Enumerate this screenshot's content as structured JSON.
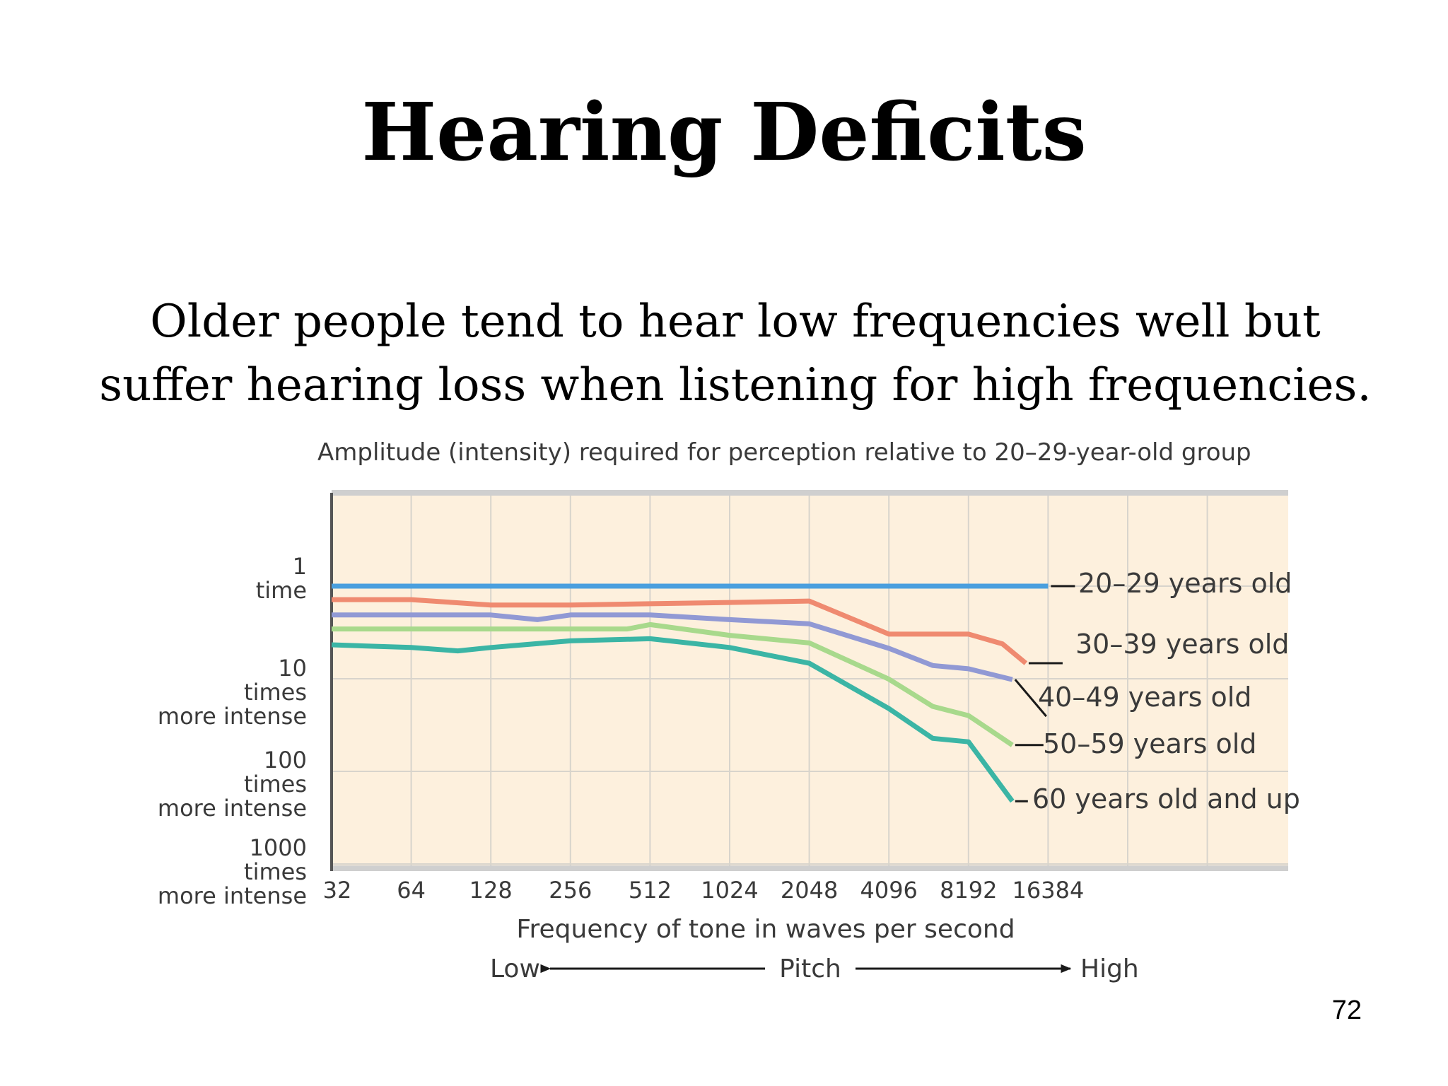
{
  "slide": {
    "title": "Hearing Deficits",
    "subtitle": "Older people tend to hear low frequencies well but suffer hearing loss when listening for high frequencies.",
    "page_number": "72"
  },
  "colors": {
    "plot_background": "#fdf0dd",
    "grid": "#d8d4cc",
    "plot_border": "#cfcfcf",
    "text": "#3a3a3a",
    "axis_line": "#1a1a1a"
  },
  "chart_data": {
    "type": "line",
    "title": "Amplitude (intensity) required for perception relative to 20–29-year-old group",
    "xlabel": "Frequency of tone in waves per second",
    "x_scale": "log2",
    "x": [
      32,
      64,
      128,
      256,
      512,
      1024,
      2048,
      4096,
      8192,
      16384
    ],
    "x_tick_labels": [
      "32",
      "64",
      "128",
      "256",
      "512",
      "1024",
      "2048",
      "4096",
      "8192",
      "16384"
    ],
    "y_scale": "log10",
    "y_ticks": [
      {
        "value": 1,
        "label": [
          "1",
          "time"
        ]
      },
      {
        "value": 10,
        "label": [
          "10",
          "times",
          "more intense"
        ]
      },
      {
        "value": 100,
        "label": [
          "100",
          "times",
          "more intense"
        ]
      },
      {
        "value": 1000,
        "label": [
          "1000",
          "times",
          "more intense"
        ]
      }
    ],
    "ylim": [
      0.25,
      1000
    ],
    "grid": true,
    "pitch_axis": {
      "low": "Low",
      "label": "Pitch",
      "high": "High"
    },
    "series": [
      {
        "name": "20–29 years old",
        "color": "#4a9fde",
        "points": [
          [
            32,
            1
          ],
          [
            64,
            1
          ],
          [
            128,
            1
          ],
          [
            256,
            1
          ],
          [
            512,
            1
          ],
          [
            1024,
            1
          ],
          [
            2048,
            1
          ],
          [
            4096,
            1
          ],
          [
            8192,
            1
          ],
          [
            16384,
            1
          ]
        ]
      },
      {
        "name": "30–39 years old",
        "color": "#ef8a70",
        "points": [
          [
            32,
            1.4
          ],
          [
            64,
            1.4
          ],
          [
            128,
            1.6
          ],
          [
            256,
            1.6
          ],
          [
            512,
            1.55
          ],
          [
            1024,
            1.5
          ],
          [
            2048,
            1.45
          ],
          [
            4096,
            3.3
          ],
          [
            8192,
            3.3
          ],
          [
            11000,
            4.2
          ],
          [
            13500,
            6.8
          ]
        ]
      },
      {
        "name": "40–49 years old",
        "color": "#9199d4",
        "points": [
          [
            32,
            2.05
          ],
          [
            64,
            2.05
          ],
          [
            128,
            2.05
          ],
          [
            192,
            2.3
          ],
          [
            256,
            2.05
          ],
          [
            512,
            2.05
          ],
          [
            1024,
            2.3
          ],
          [
            2048,
            2.55
          ],
          [
            4096,
            4.7
          ],
          [
            6000,
            7.2
          ],
          [
            8192,
            7.8
          ],
          [
            12000,
            10.2
          ]
        ]
      },
      {
        "name": "50–59 years old",
        "color": "#a8d98c",
        "points": [
          [
            32,
            2.9
          ],
          [
            64,
            2.9
          ],
          [
            128,
            2.9
          ],
          [
            256,
            2.9
          ],
          [
            420,
            2.9
          ],
          [
            512,
            2.6
          ],
          [
            1024,
            3.4
          ],
          [
            2048,
            4.1
          ],
          [
            4096,
            10.1
          ],
          [
            6000,
            19.9
          ],
          [
            8192,
            25
          ],
          [
            12000,
            52
          ]
        ]
      },
      {
        "name": "60 years old and up",
        "color": "#3bb5a5",
        "points": [
          [
            32,
            4.3
          ],
          [
            64,
            4.6
          ],
          [
            96,
            5
          ],
          [
            128,
            4.6
          ],
          [
            256,
            3.9
          ],
          [
            512,
            3.7
          ],
          [
            1024,
            4.6
          ],
          [
            2048,
            6.8
          ],
          [
            4096,
            21
          ],
          [
            6000,
            44
          ],
          [
            8192,
            48
          ],
          [
            12000,
            210
          ]
        ]
      }
    ],
    "series_label_order": [
      "20–29 years old",
      "30–39 years old",
      "40–49 years old",
      "50–59 years old",
      "60 years old and up"
    ]
  }
}
